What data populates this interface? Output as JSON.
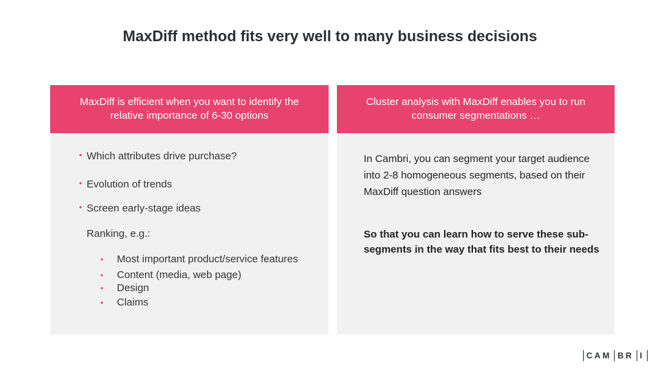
{
  "title": "MaxDiff method fits very well to many business decisions",
  "left_panel": {
    "header": "MaxDiff is efficient when you want to identify the relative importance of 6-30 options",
    "bullets": [
      "Which attributes drive purchase?",
      "Evolution of trends",
      "Screen early-stage ideas"
    ],
    "ranking_label": "Ranking, e.g.:",
    "ranking_items": [
      "Most important product/service features",
      "Content (media, web page)",
      "Design",
      "Claims"
    ]
  },
  "right_panel": {
    "header": "Cluster analysis with MaxDiff enables you to run consumer segmentations …",
    "paragraph": "In Cambri, you can segment your target audience into 2-8 homogeneous segments, based on their MaxDiff question answers",
    "bold_paragraph": "So that you can learn how to serve these sub-segments in the way that fits best to their needs"
  },
  "logo": {
    "parts": [
      "CAM",
      "BR",
      "I"
    ]
  },
  "colors": {
    "accent": "#e8426e",
    "panel_bg": "#f1f1f2",
    "title": "#2b2f33"
  }
}
